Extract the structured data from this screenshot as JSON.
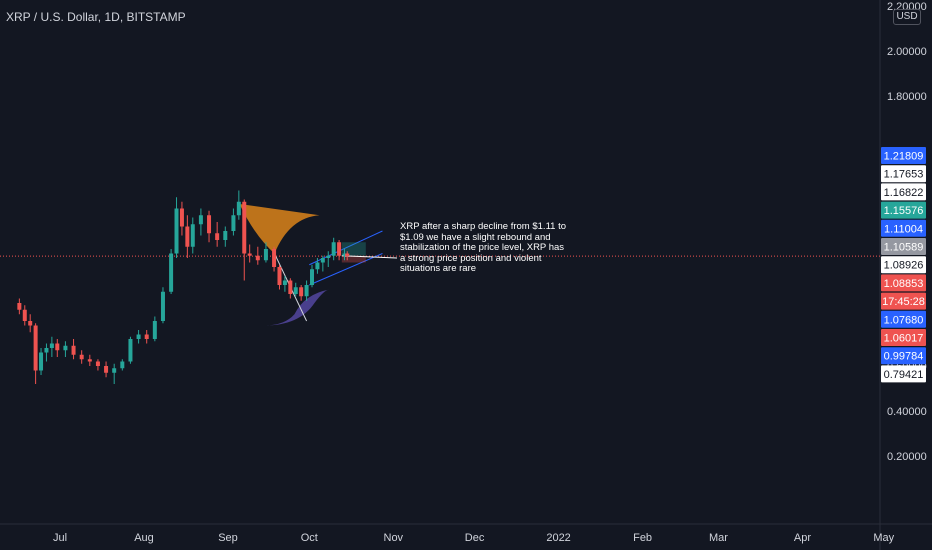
{
  "header": {
    "title": "XRP / U.S. Dollar, 1D, BITSTAMP",
    "currency": "USD"
  },
  "annotation": {
    "text": "XRP after a sharp decline from $1.11 to $1.09 we have a slight rebound and stabilization of the price level, XRP has a strong price position and violent situations are rare"
  },
  "colors": {
    "background": "#131722",
    "up": "#26a69a",
    "down": "#ef5350",
    "pattern_fill": "#f7931a",
    "pattern_fill_lower": "#5c4db1",
    "channel": "#2962ff",
    "last_price_line": "#ef5350"
  },
  "chart_data": {
    "type": "candlestick",
    "title": "XRP / U.S. Dollar, 1D, BITSTAMP",
    "ylabel": "USD",
    "ylim": [
      0.1,
      2.2
    ],
    "y_ticks": [
      "0.20000",
      "0.40000",
      "0.60000",
      "1.80000",
      "2.00000",
      "2.20000"
    ],
    "x_ticks": [
      "Jul",
      "Aug",
      "Sep",
      "Oct",
      "Nov",
      "Dec",
      "2022",
      "Feb",
      "Mar",
      "Apr",
      "May"
    ],
    "x_tick_dates": [
      "2021-07-01",
      "2021-08-01",
      "2021-09-01",
      "2021-10-01",
      "2021-11-01",
      "2021-12-01",
      "2022-01-01",
      "2022-02-01",
      "2022-03-01",
      "2022-04-01",
      "2022-05-01"
    ],
    "price_labels": [
      {
        "value": "1.21809",
        "bg": "#2962ff",
        "fg": "#ffffff"
      },
      {
        "value": "1.17653",
        "bg": "#ffffff",
        "fg": "#131722"
      },
      {
        "value": "1.16822",
        "bg": "#ffffff",
        "fg": "#131722"
      },
      {
        "value": "1.15576",
        "bg": "#26a69a",
        "fg": "#ffffff"
      },
      {
        "value": "1.11004",
        "bg": "#2962ff",
        "fg": "#ffffff"
      },
      {
        "value": "1.10589",
        "bg": "#9598a1",
        "fg": "#ffffff"
      },
      {
        "value": "1.08926",
        "bg": "#ffffff",
        "fg": "#131722"
      },
      {
        "value": "1.08853",
        "bg": "#ef5350",
        "fg": "#ffffff"
      },
      {
        "value": "17:45:28",
        "bg": "#ef5350",
        "fg": "#ffffff"
      },
      {
        "value": "1.07680",
        "bg": "#2962ff",
        "fg": "#ffffff"
      },
      {
        "value": "1.06017",
        "bg": "#ef5350",
        "fg": "#ffffff"
      },
      {
        "value": "0.99784",
        "bg": "#2962ff",
        "fg": "#ffffff"
      },
      {
        "value": "0.79421",
        "bg": "#ffffff",
        "fg": "#131722"
      }
    ],
    "last_price": 1.08853,
    "countdown": "17:45:28",
    "candles": [
      {
        "date": "2021-06-16",
        "o": 0.88,
        "h": 0.9,
        "l": 0.83,
        "c": 0.85
      },
      {
        "date": "2021-06-18",
        "o": 0.85,
        "h": 0.87,
        "l": 0.78,
        "c": 0.8
      },
      {
        "date": "2021-06-20",
        "o": 0.8,
        "h": 0.83,
        "l": 0.75,
        "c": 0.78
      },
      {
        "date": "2021-06-22",
        "o": 0.78,
        "h": 0.79,
        "l": 0.52,
        "c": 0.58
      },
      {
        "date": "2021-06-24",
        "o": 0.58,
        "h": 0.68,
        "l": 0.56,
        "c": 0.66
      },
      {
        "date": "2021-06-26",
        "o": 0.66,
        "h": 0.7,
        "l": 0.62,
        "c": 0.68
      },
      {
        "date": "2021-06-28",
        "o": 0.68,
        "h": 0.73,
        "l": 0.64,
        "c": 0.7
      },
      {
        "date": "2021-06-30",
        "o": 0.7,
        "h": 0.72,
        "l": 0.64,
        "c": 0.67
      },
      {
        "date": "2021-07-03",
        "o": 0.67,
        "h": 0.71,
        "l": 0.64,
        "c": 0.69
      },
      {
        "date": "2021-07-06",
        "o": 0.69,
        "h": 0.72,
        "l": 0.63,
        "c": 0.65
      },
      {
        "date": "2021-07-09",
        "o": 0.65,
        "h": 0.67,
        "l": 0.61,
        "c": 0.63
      },
      {
        "date": "2021-07-12",
        "o": 0.63,
        "h": 0.65,
        "l": 0.6,
        "c": 0.62
      },
      {
        "date": "2021-07-15",
        "o": 0.62,
        "h": 0.63,
        "l": 0.58,
        "c": 0.6
      },
      {
        "date": "2021-07-18",
        "o": 0.6,
        "h": 0.62,
        "l": 0.55,
        "c": 0.57
      },
      {
        "date": "2021-07-21",
        "o": 0.57,
        "h": 0.61,
        "l": 0.52,
        "c": 0.59
      },
      {
        "date": "2021-07-24",
        "o": 0.59,
        "h": 0.63,
        "l": 0.58,
        "c": 0.62
      },
      {
        "date": "2021-07-27",
        "o": 0.62,
        "h": 0.73,
        "l": 0.61,
        "c": 0.72
      },
      {
        "date": "2021-07-30",
        "o": 0.72,
        "h": 0.76,
        "l": 0.7,
        "c": 0.74
      },
      {
        "date": "2021-08-02",
        "o": 0.74,
        "h": 0.76,
        "l": 0.7,
        "c": 0.72
      },
      {
        "date": "2021-08-05",
        "o": 0.72,
        "h": 0.82,
        "l": 0.71,
        "c": 0.8
      },
      {
        "date": "2021-08-08",
        "o": 0.8,
        "h": 0.95,
        "l": 0.79,
        "c": 0.93
      },
      {
        "date": "2021-08-11",
        "o": 0.93,
        "h": 1.12,
        "l": 0.92,
        "c": 1.1
      },
      {
        "date": "2021-08-13",
        "o": 1.1,
        "h": 1.35,
        "l": 1.08,
        "c": 1.3
      },
      {
        "date": "2021-08-15",
        "o": 1.3,
        "h": 1.33,
        "l": 1.18,
        "c": 1.22
      },
      {
        "date": "2021-08-17",
        "o": 1.22,
        "h": 1.27,
        "l": 1.08,
        "c": 1.13
      },
      {
        "date": "2021-08-19",
        "o": 1.13,
        "h": 1.26,
        "l": 1.1,
        "c": 1.23
      },
      {
        "date": "2021-08-22",
        "o": 1.23,
        "h": 1.3,
        "l": 1.18,
        "c": 1.27
      },
      {
        "date": "2021-08-25",
        "o": 1.27,
        "h": 1.29,
        "l": 1.15,
        "c": 1.19
      },
      {
        "date": "2021-08-28",
        "o": 1.19,
        "h": 1.24,
        "l": 1.13,
        "c": 1.16
      },
      {
        "date": "2021-08-31",
        "o": 1.16,
        "h": 1.22,
        "l": 1.13,
        "c": 1.2
      },
      {
        "date": "2021-09-03",
        "o": 1.2,
        "h": 1.3,
        "l": 1.18,
        "c": 1.27
      },
      {
        "date": "2021-09-05",
        "o": 1.27,
        "h": 1.38,
        "l": 1.25,
        "c": 1.33
      },
      {
        "date": "2021-09-07",
        "o": 1.33,
        "h": 1.34,
        "l": 0.98,
        "c": 1.1
      },
      {
        "date": "2021-09-09",
        "o": 1.1,
        "h": 1.14,
        "l": 1.06,
        "c": 1.09
      },
      {
        "date": "2021-09-12",
        "o": 1.09,
        "h": 1.13,
        "l": 1.05,
        "c": 1.07
      },
      {
        "date": "2021-09-15",
        "o": 1.07,
        "h": 1.15,
        "l": 1.06,
        "c": 1.12
      },
      {
        "date": "2021-09-18",
        "o": 1.12,
        "h": 1.13,
        "l": 1.02,
        "c": 1.04
      },
      {
        "date": "2021-09-20",
        "o": 1.04,
        "h": 1.05,
        "l": 0.94,
        "c": 0.96
      },
      {
        "date": "2021-09-22",
        "o": 0.96,
        "h": 1.0,
        "l": 0.93,
        "c": 0.98
      },
      {
        "date": "2021-09-24",
        "o": 0.98,
        "h": 0.99,
        "l": 0.9,
        "c": 0.92
      },
      {
        "date": "2021-09-26",
        "o": 0.92,
        "h": 0.97,
        "l": 0.91,
        "c": 0.95
      },
      {
        "date": "2021-09-28",
        "o": 0.95,
        "h": 0.96,
        "l": 0.89,
        "c": 0.91
      },
      {
        "date": "2021-09-30",
        "o": 0.91,
        "h": 0.98,
        "l": 0.89,
        "c": 0.96
      },
      {
        "date": "2021-10-02",
        "o": 0.96,
        "h": 1.05,
        "l": 0.95,
        "c": 1.03
      },
      {
        "date": "2021-10-04",
        "o": 1.03,
        "h": 1.08,
        "l": 1.01,
        "c": 1.06
      },
      {
        "date": "2021-10-06",
        "o": 1.06,
        "h": 1.09,
        "l": 1.02,
        "c": 1.08
      },
      {
        "date": "2021-10-08",
        "o": 1.08,
        "h": 1.11,
        "l": 1.04,
        "c": 1.09
      },
      {
        "date": "2021-10-10",
        "o": 1.09,
        "h": 1.17,
        "l": 1.07,
        "c": 1.15
      },
      {
        "date": "2021-10-12",
        "o": 1.15,
        "h": 1.16,
        "l": 1.07,
        "c": 1.09
      },
      {
        "date": "2021-10-14",
        "o": 1.09,
        "h": 1.12,
        "l": 1.07,
        "c": 1.1
      },
      {
        "date": "2021-10-15",
        "o": 1.1,
        "h": 1.11,
        "l": 1.07,
        "c": 1.08853
      }
    ]
  }
}
